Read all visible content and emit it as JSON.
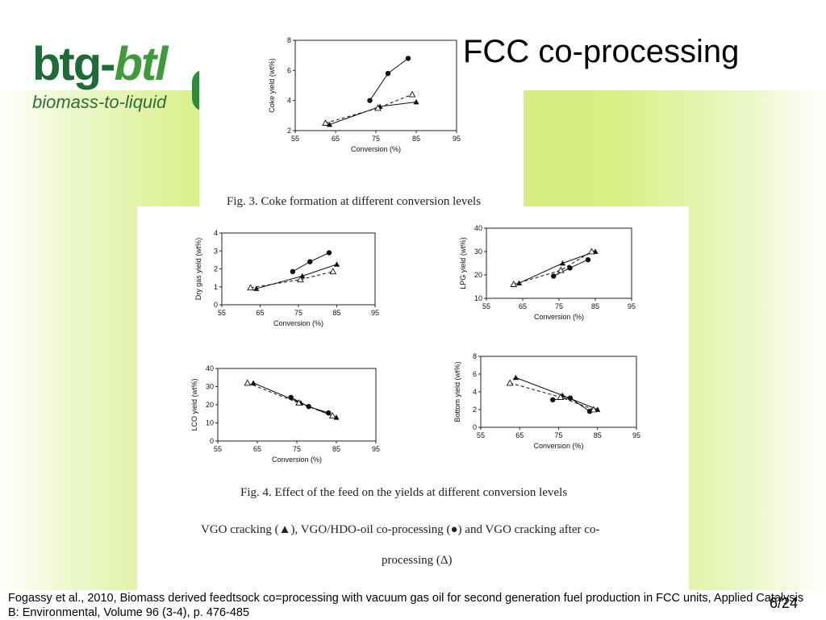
{
  "slide": {
    "title": "FCC co-processing",
    "page_number": "6/24",
    "reference": "Fogassy et al., 2010, Biomass derived feedtsock co=processing with vacuum gas oil for second generation fuel production in FCC units, Applied Catalysis B: Environmental, Volume 96 (3-4), p. 476-485"
  },
  "logo": {
    "main_part1": "btg-",
    "main_part2": "btl",
    "subtitle": "biomass-to-liquid"
  },
  "captions": {
    "fig3": "Fig. 3. Coke formation at different conversion levels",
    "fig4": "Fig. 4. Effect of the feed on the yields at different conversion levels",
    "legend_line1": "VGO cracking (▲), VGO/HDO-oil co-processing (●) and VGO cracking after co-",
    "legend_line2": "processing (Δ)"
  },
  "colors": {
    "brand_green": "#1e6b36",
    "band_green": "#d4ec78"
  },
  "chart_data": [
    {
      "id": "coke",
      "type": "scatter",
      "xlabel": "Conversion (%)",
      "ylabel": "Coke yield (wt%)",
      "xlim": [
        55,
        95
      ],
      "ylim": [
        2,
        8
      ],
      "xticks": [
        55,
        65,
        75,
        85,
        95
      ],
      "yticks": [
        2,
        4,
        6,
        8
      ],
      "series": [
        {
          "marker": "filled-triangle",
          "line": "solid",
          "x": [
            63.5,
            76,
            85
          ],
          "y": [
            2.4,
            3.6,
            3.9
          ]
        },
        {
          "marker": "filled-circle",
          "line": "solid",
          "x": [
            73.5,
            78,
            83
          ],
          "y": [
            4.0,
            5.8,
            6.8
          ]
        },
        {
          "marker": "open-triangle",
          "line": "dashed",
          "x": [
            62.5,
            75.5,
            84
          ],
          "y": [
            2.5,
            3.5,
            4.4
          ]
        }
      ]
    },
    {
      "id": "dry_gas",
      "type": "scatter",
      "xlabel": "Conversion (%)",
      "ylabel": "Dry gas yield (wt%)",
      "xlim": [
        55,
        95
      ],
      "ylim": [
        0,
        4
      ],
      "xticks": [
        55,
        65,
        75,
        85,
        95
      ],
      "yticks": [
        0,
        1,
        2,
        3,
        4
      ],
      "series": [
        {
          "marker": "filled-triangle",
          "line": "solid",
          "x": [
            64,
            76,
            85
          ],
          "y": [
            0.9,
            1.6,
            2.25
          ]
        },
        {
          "marker": "filled-circle",
          "line": "solid",
          "x": [
            73.5,
            78,
            83
          ],
          "y": [
            1.85,
            2.4,
            2.9
          ]
        },
        {
          "marker": "open-triangle",
          "line": "dashed",
          "x": [
            62.5,
            75.5,
            84
          ],
          "y": [
            0.95,
            1.4,
            1.85
          ]
        }
      ]
    },
    {
      "id": "lpg",
      "type": "scatter",
      "xlabel": "Conversion (%)",
      "ylabel": "LPG yield (wt%)",
      "xlim": [
        55,
        95
      ],
      "ylim": [
        10,
        40
      ],
      "xticks": [
        55,
        65,
        75,
        85,
        95
      ],
      "yticks": [
        10,
        20,
        30,
        40
      ],
      "series": [
        {
          "marker": "filled-triangle",
          "line": "solid",
          "x": [
            64,
            76,
            85
          ],
          "y": [
            16.5,
            25,
            30
          ]
        },
        {
          "marker": "filled-circle",
          "line": "solid",
          "x": [
            73.5,
            78,
            83
          ],
          "y": [
            19.5,
            23,
            26.5
          ]
        },
        {
          "marker": "open-triangle",
          "line": "dashed",
          "x": [
            62.5,
            75.5,
            84
          ],
          "y": [
            16,
            22,
            30
          ]
        }
      ]
    },
    {
      "id": "lco",
      "type": "scatter",
      "xlabel": "Conversion (%)",
      "ylabel": "LCO yield (wt%)",
      "xlim": [
        55,
        95
      ],
      "ylim": [
        0,
        40
      ],
      "xticks": [
        55,
        65,
        75,
        85,
        95
      ],
      "yticks": [
        0,
        10,
        20,
        30,
        40
      ],
      "series": [
        {
          "marker": "filled-triangle",
          "line": "solid",
          "x": [
            64,
            76,
            85
          ],
          "y": [
            32,
            21,
            13
          ]
        },
        {
          "marker": "filled-circle",
          "line": "solid",
          "x": [
            73.5,
            78,
            83
          ],
          "y": [
            24,
            19,
            15.5
          ]
        },
        {
          "marker": "open-triangle",
          "line": "dashed",
          "x": [
            62.5,
            75.5,
            84
          ],
          "y": [
            32,
            21,
            14
          ]
        }
      ]
    },
    {
      "id": "bottom",
      "type": "scatter",
      "xlabel": "Conversion (%)",
      "ylabel": "Bottom yield (wt%)",
      "xlim": [
        55,
        95
      ],
      "ylim": [
        0,
        8
      ],
      "xticks": [
        55,
        65,
        75,
        85,
        95
      ],
      "yticks": [
        0,
        2,
        4,
        6,
        8
      ],
      "series": [
        {
          "marker": "filled-triangle",
          "line": "solid",
          "x": [
            64,
            76,
            85
          ],
          "y": [
            5.6,
            3.6,
            2.0
          ]
        },
        {
          "marker": "filled-circle",
          "line": "solid",
          "x": [
            73.5,
            78,
            83
          ],
          "y": [
            3.1,
            3.3,
            1.8
          ]
        },
        {
          "marker": "open-triangle",
          "line": "dashed",
          "x": [
            62.5,
            75.5,
            84
          ],
          "y": [
            5.0,
            3.4,
            2.0
          ]
        }
      ]
    }
  ]
}
